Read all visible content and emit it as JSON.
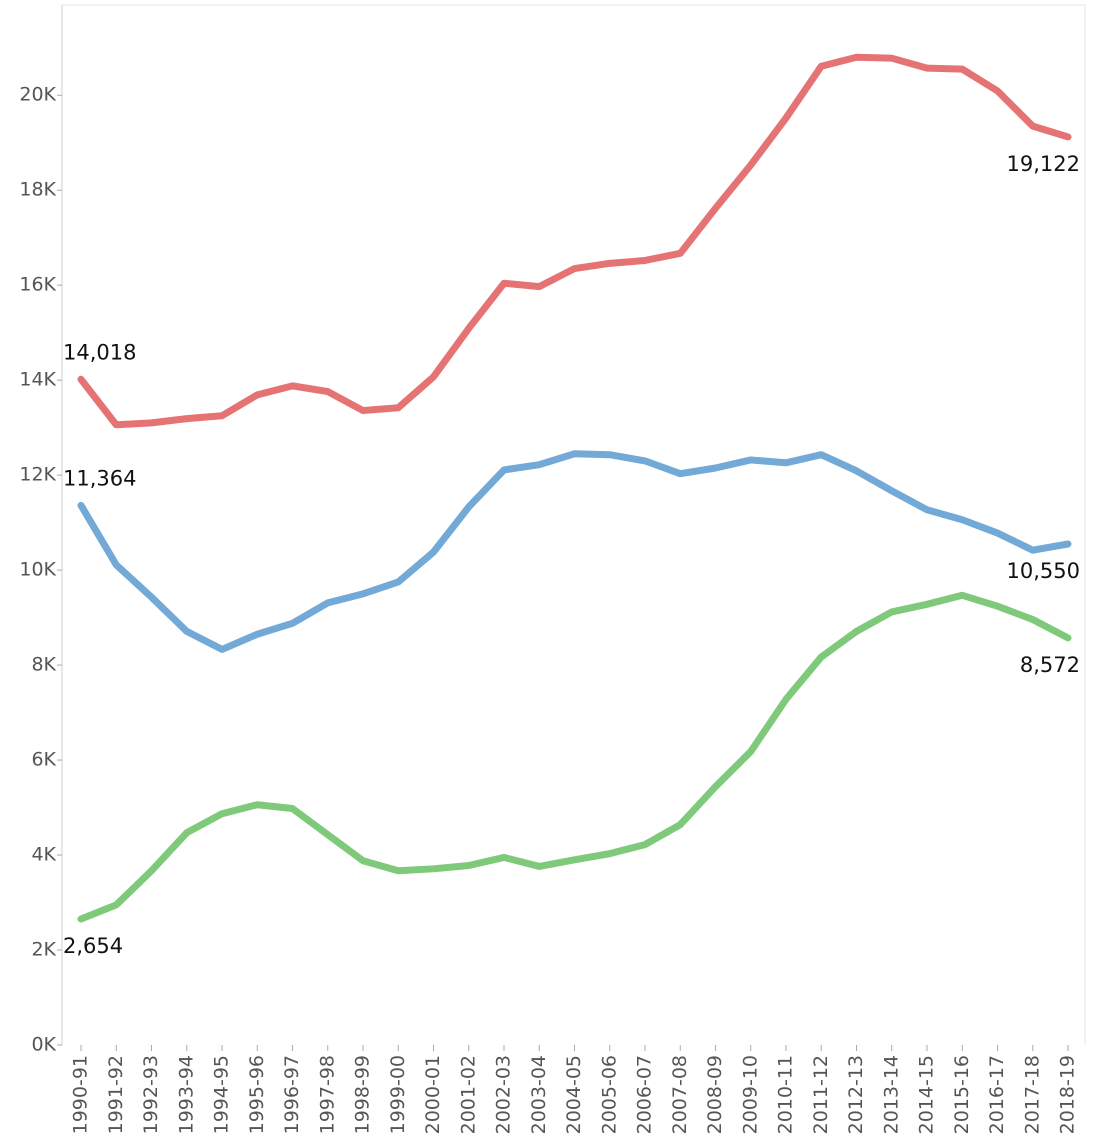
{
  "chart_data": {
    "type": "line",
    "categories": [
      "1990-91",
      "1991-92",
      "1992-93",
      "1993-94",
      "1994-95",
      "1995-96",
      "1996-97",
      "1997-98",
      "1998-99",
      "1999-00",
      "2000-01",
      "2001-02",
      "2002-03",
      "2003-04",
      "2004-05",
      "2005-06",
      "2006-07",
      "2007-08",
      "2008-09",
      "2009-10",
      "2010-11",
      "2011-12",
      "2012-13",
      "2013-14",
      "2014-15",
      "2015-16",
      "2016-17",
      "2017-18",
      "2018-19"
    ],
    "series": [
      {
        "color": "#e57373",
        "values": [
          14018,
          13060,
          13100,
          13190,
          13250,
          13690,
          13880,
          13760,
          13360,
          13420,
          14070,
          15090,
          16040,
          15970,
          16350,
          16460,
          16520,
          16670,
          17620,
          18530,
          19520,
          20610,
          20800,
          20780,
          20570,
          20550,
          20090,
          19350,
          19122
        ],
        "value_labels": [
          "14,018",
          null,
          null,
          null,
          null,
          null,
          null,
          null,
          null,
          null,
          null,
          null,
          null,
          null,
          null,
          null,
          null,
          null,
          null,
          null,
          null,
          null,
          null,
          null,
          null,
          null,
          null,
          null,
          "19,122"
        ]
      },
      {
        "color": "#72a9d6",
        "values": [
          11364,
          10110,
          9430,
          8710,
          8330,
          8650,
          8880,
          9310,
          9500,
          9750,
          10380,
          11330,
          12110,
          12220,
          12450,
          12430,
          12300,
          12030,
          12150,
          12320,
          12260,
          12430,
          12090,
          11670,
          11270,
          11060,
          10780,
          10420,
          10550
        ],
        "value_labels": [
          "11,364",
          null,
          null,
          null,
          null,
          null,
          null,
          null,
          null,
          null,
          null,
          null,
          null,
          null,
          null,
          null,
          null,
          null,
          null,
          null,
          null,
          null,
          null,
          null,
          null,
          null,
          null,
          null,
          "10,550"
        ]
      },
      {
        "color": "#7fc97a",
        "values": [
          2654,
          2950,
          3670,
          4470,
          4870,
          5060,
          4980,
          4430,
          3880,
          3670,
          3710,
          3780,
          3950,
          3760,
          3900,
          4030,
          4220,
          4640,
          5440,
          6180,
          7280,
          8170,
          8710,
          9120,
          9280,
          9470,
          9240,
          8960,
          8572
        ],
        "value_labels": [
          "2,654",
          null,
          null,
          null,
          null,
          null,
          null,
          null,
          null,
          null,
          null,
          null,
          null,
          null,
          null,
          null,
          null,
          null,
          null,
          null,
          null,
          null,
          null,
          null,
          null,
          null,
          null,
          null,
          "8,572"
        ]
      }
    ],
    "ylim": [
      0,
      21900
    ],
    "yticks": [
      {
        "value": 0,
        "label": "0K"
      },
      {
        "value": 2000,
        "label": "2K"
      },
      {
        "value": 4000,
        "label": "4K"
      },
      {
        "value": 6000,
        "label": "6K"
      },
      {
        "value": 8000,
        "label": "8K"
      },
      {
        "value": 10000,
        "label": "10K"
      },
      {
        "value": 12000,
        "label": "12K"
      },
      {
        "value": 14000,
        "label": "14K"
      },
      {
        "value": 16000,
        "label": "16K"
      },
      {
        "value": 18000,
        "label": "18K"
      },
      {
        "value": 20000,
        "label": "20K"
      }
    ]
  }
}
